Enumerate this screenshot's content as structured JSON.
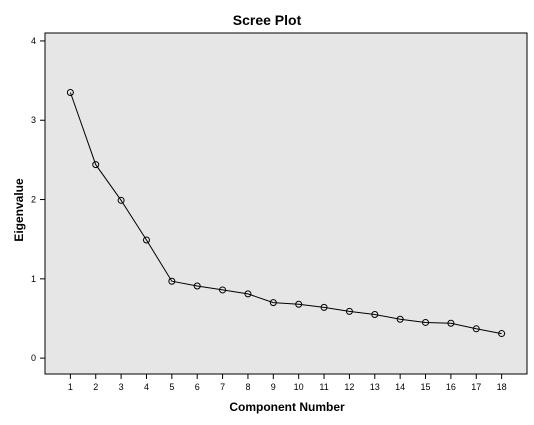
{
  "chart_data": {
    "type": "line",
    "title": "Scree Plot",
    "xlabel": "Component Number",
    "ylabel": "Eigenvalue",
    "x": [
      1,
      2,
      3,
      4,
      5,
      6,
      7,
      8,
      9,
      10,
      11,
      12,
      13,
      14,
      15,
      16,
      17,
      18
    ],
    "x_tick_labels": [
      "1",
      "2",
      "3",
      "4",
      "5",
      "6",
      "7",
      "8",
      "9",
      "10",
      "11",
      "12",
      "13",
      "14",
      "15",
      "16",
      "17",
      "18"
    ],
    "y_tick_labels": [
      "0",
      "1",
      "2",
      "3",
      "4"
    ],
    "y_ticks": [
      0,
      1,
      2,
      3,
      4
    ],
    "ylim": [
      -0.2,
      4.1
    ],
    "xlim": [
      0,
      19
    ],
    "grid": false,
    "series": [
      {
        "values": [
          3.35,
          2.44,
          1.99,
          1.49,
          0.97,
          0.91,
          0.86,
          0.81,
          0.7,
          0.68,
          0.64,
          0.59,
          0.55,
          0.49,
          0.45,
          0.44,
          0.37,
          0.31
        ]
      }
    ],
    "colors": {
      "plot_background": "#e6e6e6",
      "line": "#000000",
      "marker_stroke": "#000000"
    }
  }
}
